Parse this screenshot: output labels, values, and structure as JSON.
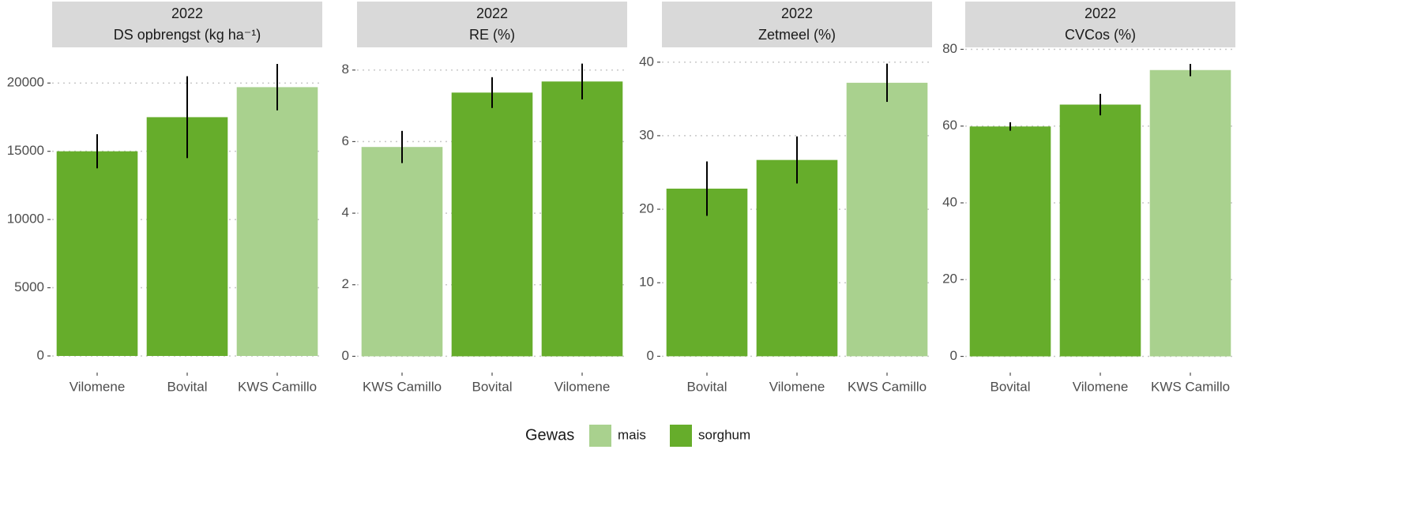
{
  "chart_data": [
    {
      "type": "bar",
      "title": "2022",
      "subtitle": "DS opbrengst (kg ha⁻¹)",
      "categories": [
        "Vilomene",
        "Bovital",
        "KWS Camillo"
      ],
      "groups": [
        "sorghum",
        "sorghum",
        "mais"
      ],
      "values": [
        15000,
        17500,
        19700
      ],
      "errors": [
        1250,
        3000,
        1700
      ],
      "ylim": [
        -1100,
        22500
      ],
      "yticks": [
        0,
        5000,
        10000,
        15000,
        20000
      ],
      "grid": true
    },
    {
      "type": "bar",
      "title": "2022",
      "subtitle": "RE (%)",
      "categories": [
        "KWS Camillo",
        "Bovital",
        "Vilomene"
      ],
      "groups": [
        "mais",
        "sorghum",
        "sorghum"
      ],
      "values": [
        5.85,
        7.37,
        7.68
      ],
      "errors": [
        0.45,
        0.43,
        0.5
      ],
      "ylim": [
        -0.41,
        8.59
      ],
      "yticks": [
        0,
        2,
        4,
        6,
        8
      ],
      "grid": true
    },
    {
      "type": "bar",
      "title": "2022",
      "subtitle": "Zetmeel (%)",
      "categories": [
        "Bovital",
        "Vilomene",
        "KWS Camillo"
      ],
      "groups": [
        "sorghum",
        "sorghum",
        "mais"
      ],
      "values": [
        22.8,
        26.7,
        37.2
      ],
      "errors": [
        3.7,
        3.2,
        2.6
      ],
      "ylim": [
        -2,
        41.8
      ],
      "yticks": [
        0,
        10,
        20,
        30,
        40
      ],
      "grid": true
    },
    {
      "type": "bar",
      "title": "2022",
      "subtitle": "CVCos (%)",
      "categories": [
        "Bovital",
        "Vilomene",
        "KWS Camillo"
      ],
      "groups": [
        "sorghum",
        "sorghum",
        "mais"
      ],
      "values": [
        59.9,
        65.6,
        74.6
      ],
      "errors": [
        1.1,
        2.8,
        1.6
      ],
      "ylim": [
        -3.8,
        80.1
      ],
      "yticks": [
        0,
        20,
        40,
        60,
        80
      ],
      "grid": true
    }
  ],
  "legend": {
    "title": "Gewas",
    "items": [
      {
        "name": "mais",
        "color": "#a9d18e"
      },
      {
        "name": "sorghum",
        "color": "#66ad2b"
      }
    ]
  }
}
